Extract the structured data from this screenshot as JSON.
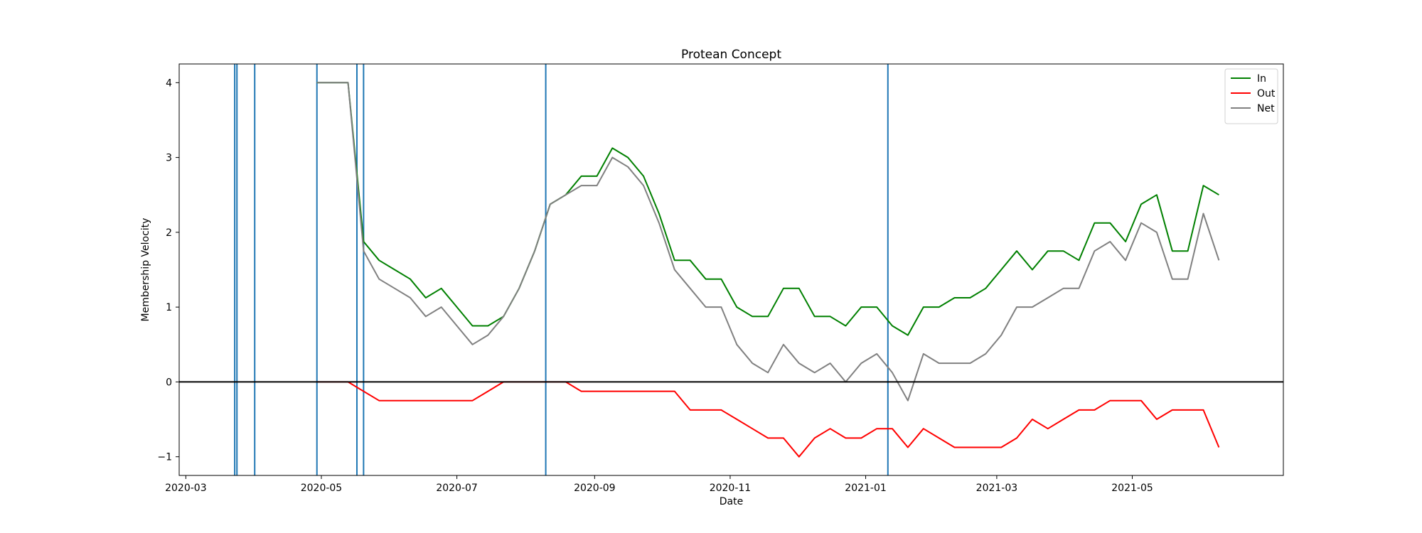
{
  "chart_data": {
    "type": "line",
    "title": "Protean Concept",
    "xlabel": "Date",
    "ylabel": "Membership Velocity",
    "x_ticks": [
      "2020-03",
      "2020-05",
      "2020-07",
      "2020-09",
      "2020-11",
      "2021-01",
      "2021-03",
      "2021-05"
    ],
    "y_ticks": [
      "−1",
      "0",
      "1",
      "2",
      "3",
      "4"
    ],
    "xlim": [
      "2020-02-27",
      "2021-07-08"
    ],
    "ylim": [
      -1.25,
      4.25
    ],
    "grid": false,
    "legend_position": "top-right",
    "zero_line": 0,
    "event_lines": [
      "2020-03-23",
      "2020-03-24",
      "2020-04-01",
      "2020-04-29",
      "2020-05-17",
      "2020-05-20",
      "2020-08-10",
      "2021-01-11"
    ],
    "x": [
      "2020-04-29",
      "2020-05-06",
      "2020-05-13",
      "2020-05-20",
      "2020-05-27",
      "2020-06-03",
      "2020-06-10",
      "2020-06-17",
      "2020-06-24",
      "2020-07-01",
      "2020-07-08",
      "2020-07-15",
      "2020-07-22",
      "2020-07-29",
      "2020-08-05",
      "2020-08-12",
      "2020-08-19",
      "2020-08-26",
      "2020-09-02",
      "2020-09-09",
      "2020-09-16",
      "2020-09-23",
      "2020-09-30",
      "2020-10-07",
      "2020-10-14",
      "2020-10-21",
      "2020-10-28",
      "2020-11-04",
      "2020-11-11",
      "2020-11-18",
      "2020-11-25",
      "2020-12-02",
      "2020-12-09",
      "2020-12-16",
      "2020-12-23",
      "2020-12-30",
      "2021-01-06",
      "2021-01-13",
      "2021-01-20",
      "2021-01-27",
      "2021-02-03",
      "2021-02-10",
      "2021-02-17",
      "2021-02-24",
      "2021-03-03",
      "2021-03-10",
      "2021-03-17",
      "2021-03-24",
      "2021-03-31",
      "2021-04-07",
      "2021-04-14",
      "2021-04-21",
      "2021-04-28",
      "2021-05-05",
      "2021-05-12",
      "2021-05-19",
      "2021-05-26",
      "2021-06-02",
      "2021-06-09"
    ],
    "series": [
      {
        "name": "In",
        "color": "#008000",
        "values": [
          4.0,
          4.0,
          4.0,
          1.875,
          1.625,
          1.5,
          1.375,
          1.125,
          1.25,
          1.0,
          0.75,
          0.75,
          0.875,
          1.25,
          1.75,
          2.375,
          2.5,
          2.75,
          2.75,
          3.125,
          3.0,
          2.75,
          2.25,
          1.625,
          1.625,
          1.375,
          1.375,
          1.0,
          0.875,
          0.875,
          1.25,
          1.25,
          0.875,
          0.875,
          0.75,
          1.0,
          1.0,
          0.75,
          0.625,
          1.0,
          1.0,
          1.125,
          1.125,
          1.25,
          1.5,
          1.75,
          1.5,
          1.75,
          1.75,
          1.625,
          2.125,
          2.125,
          1.875,
          2.375,
          2.5,
          1.75,
          1.75,
          2.625,
          2.5
        ]
      },
      {
        "name": "Out",
        "color": "#ff0000",
        "values": [
          0.0,
          0.0,
          0.0,
          -0.125,
          -0.25,
          -0.25,
          -0.25,
          -0.25,
          -0.25,
          -0.25,
          -0.25,
          -0.125,
          0.0,
          0.0,
          0.0,
          0.0,
          0.0,
          -0.125,
          -0.125,
          -0.125,
          -0.125,
          -0.125,
          -0.125,
          -0.125,
          -0.375,
          -0.375,
          -0.375,
          -0.5,
          -0.625,
          -0.75,
          -0.75,
          -1.0,
          -0.75,
          -0.625,
          -0.75,
          -0.75,
          -0.625,
          -0.625,
          -0.875,
          -0.625,
          -0.75,
          -0.875,
          -0.875,
          -0.875,
          -0.875,
          -0.75,
          -0.5,
          -0.625,
          -0.5,
          -0.375,
          -0.375,
          -0.25,
          -0.25,
          -0.25,
          -0.5,
          -0.375,
          -0.375,
          -0.375,
          -0.875
        ]
      },
      {
        "name": "Net",
        "color": "#808080",
        "values": [
          4.0,
          4.0,
          4.0,
          1.75,
          1.375,
          1.25,
          1.125,
          0.875,
          1.0,
          0.75,
          0.5,
          0.625,
          0.875,
          1.25,
          1.75,
          2.375,
          2.5,
          2.625,
          2.625,
          3.0,
          2.875,
          2.625,
          2.125,
          1.5,
          1.25,
          1.0,
          1.0,
          0.5,
          0.25,
          0.125,
          0.5,
          0.25,
          0.125,
          0.25,
          0.0,
          0.25,
          0.375,
          0.125,
          -0.25,
          0.375,
          0.25,
          0.25,
          0.25,
          0.375,
          0.625,
          1.0,
          1.0,
          1.125,
          1.25,
          1.25,
          1.75,
          1.875,
          1.625,
          2.125,
          2.0,
          1.375,
          1.375,
          2.25,
          1.625
        ]
      }
    ]
  }
}
